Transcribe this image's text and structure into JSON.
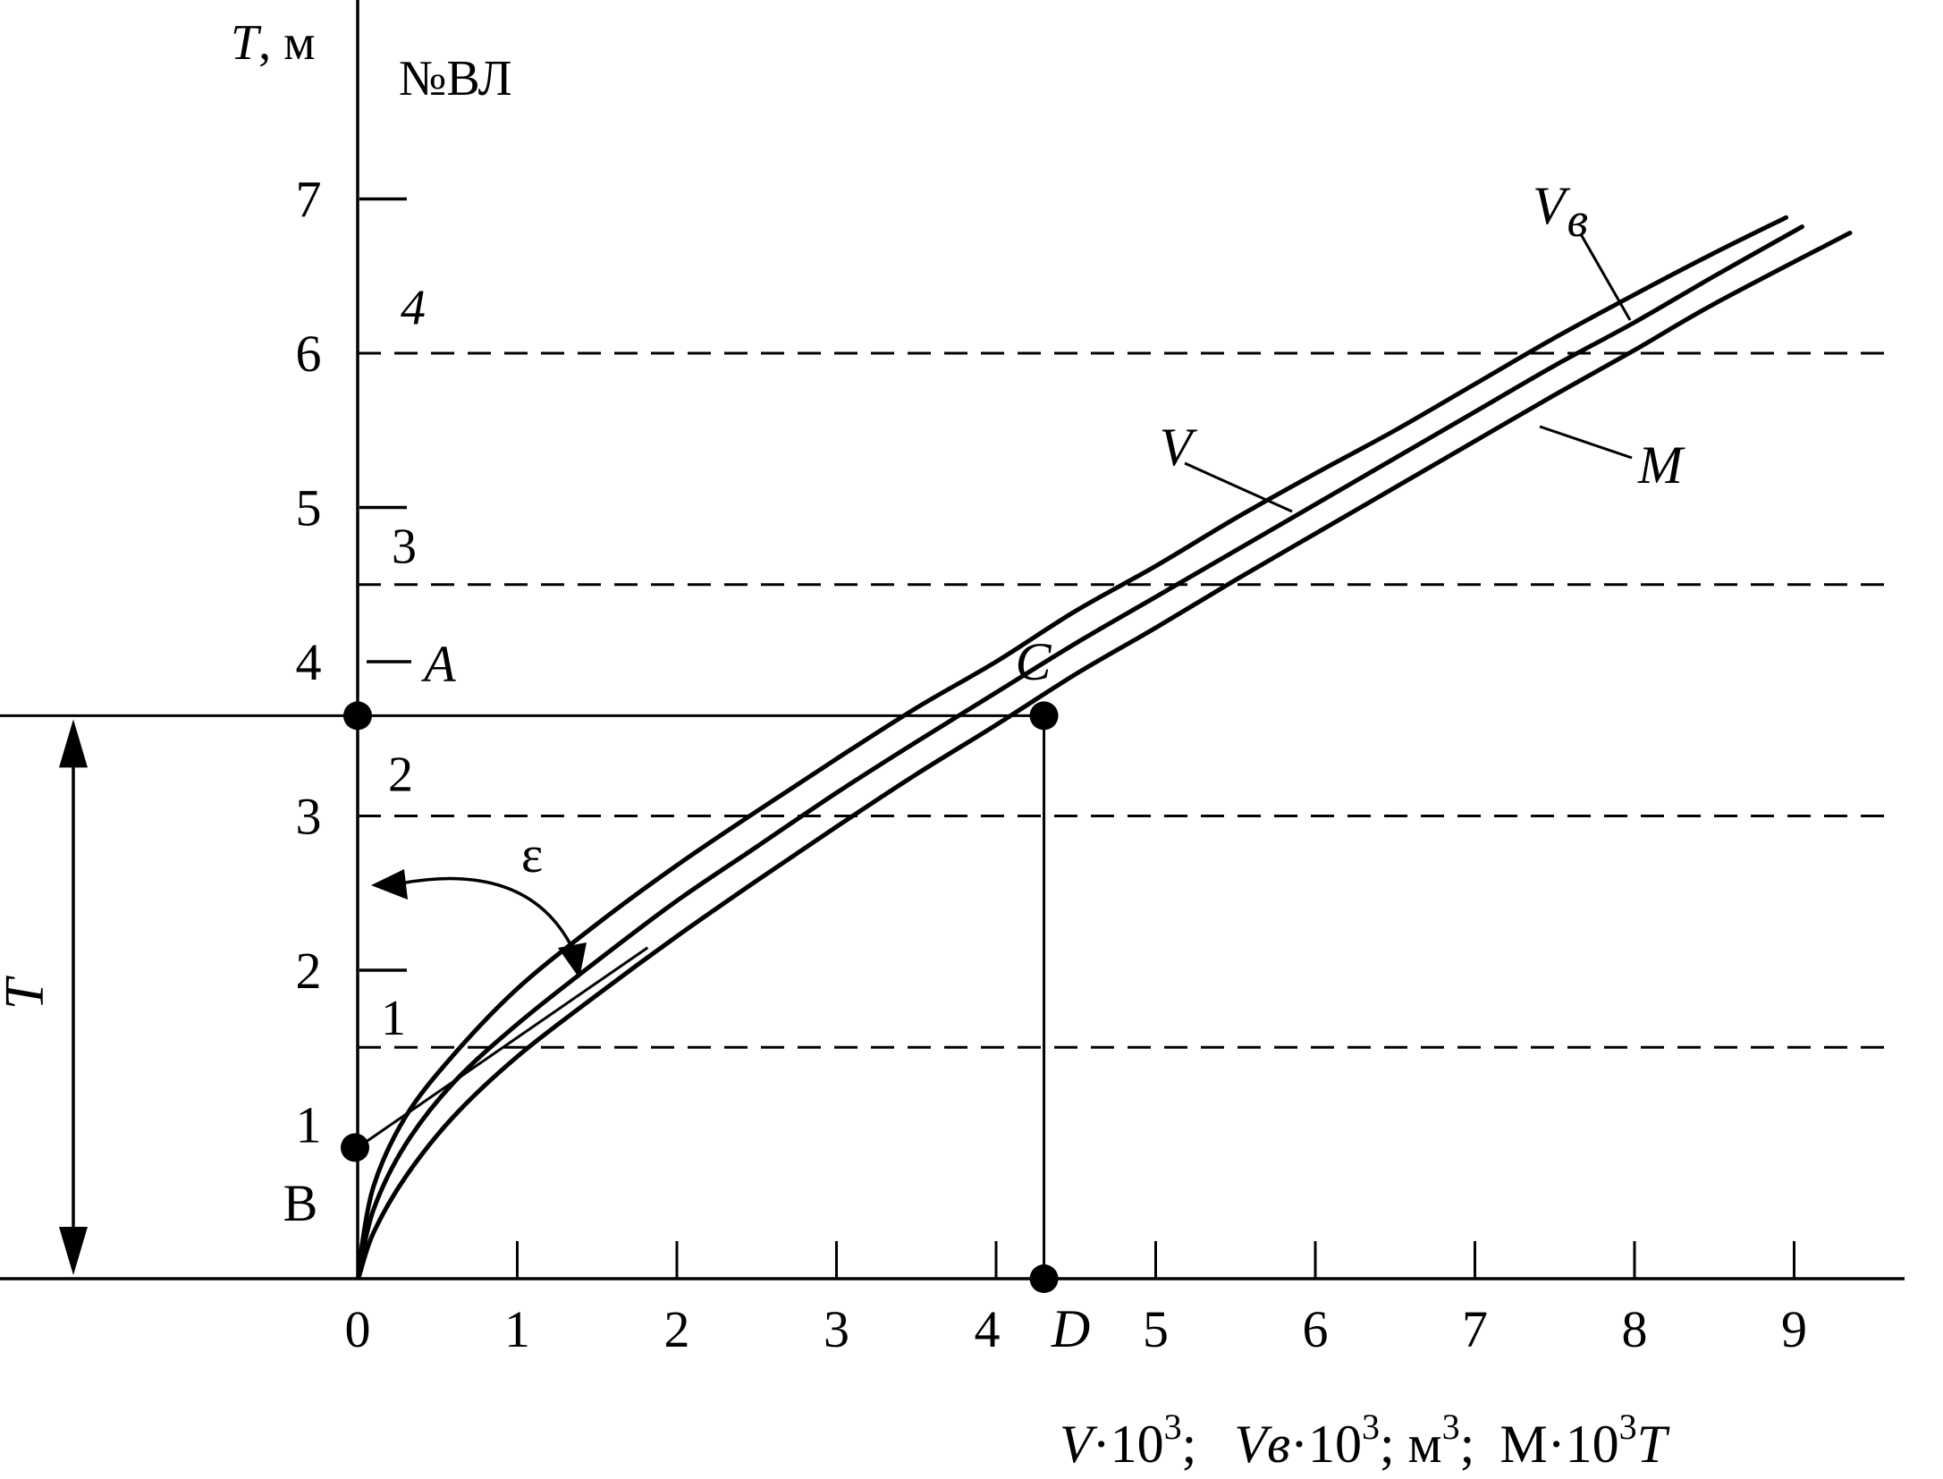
{
  "chart_data": {
    "type": "line",
    "y_axis": {
      "label_var": "T",
      "label_unit": ", м",
      "ticks": [
        "1",
        "2",
        "3",
        "4",
        "5",
        "6",
        "7"
      ],
      "range": [
        0,
        7.8
      ]
    },
    "x_axis": {
      "ticks": [
        "0",
        "1",
        "2",
        "3",
        "4",
        "5",
        "6",
        "7",
        "8",
        "9"
      ],
      "range": [
        -2.1,
        9.5
      ]
    },
    "x_label_parts": [
      "V",
      "·10",
      "3",
      ";",
      "Vв",
      "·10",
      "3",
      "; м",
      "3",
      ";",
      "М·10",
      "3",
      "T"
    ],
    "series": [
      {
        "name": "V",
        "points": [
          [
            0.01,
            0.1
          ],
          [
            0.1,
            0.6
          ],
          [
            0.3,
            1.05
          ],
          [
            0.6,
            1.45
          ],
          [
            1.0,
            1.88
          ],
          [
            1.5,
            2.3
          ],
          [
            2.0,
            2.68
          ],
          [
            2.5,
            3.03
          ],
          [
            3.0,
            3.37
          ],
          [
            3.5,
            3.7
          ],
          [
            4.0,
            4.0
          ],
          [
            4.5,
            4.33
          ],
          [
            5.0,
            4.62
          ],
          [
            5.5,
            4.93
          ],
          [
            6.0,
            5.22
          ],
          [
            6.5,
            5.5
          ],
          [
            7.0,
            5.8
          ],
          [
            7.5,
            6.1
          ],
          [
            8.0,
            6.38
          ],
          [
            8.5,
            6.65
          ],
          [
            8.95,
            6.88
          ]
        ]
      },
      {
        "name": "Vв",
        "points": [
          [
            0.01,
            0.05
          ],
          [
            0.1,
            0.45
          ],
          [
            0.3,
            0.87
          ],
          [
            0.6,
            1.27
          ],
          [
            1.0,
            1.65
          ],
          [
            1.5,
            2.06
          ],
          [
            2.0,
            2.45
          ],
          [
            2.5,
            2.8
          ],
          [
            3.0,
            3.15
          ],
          [
            3.5,
            3.48
          ],
          [
            4.0,
            3.8
          ],
          [
            4.5,
            4.12
          ],
          [
            5.0,
            4.42
          ],
          [
            5.5,
            4.72
          ],
          [
            6.0,
            5.02
          ],
          [
            6.5,
            5.32
          ],
          [
            7.0,
            5.62
          ],
          [
            7.5,
            5.92
          ],
          [
            8.0,
            6.2
          ],
          [
            8.5,
            6.5
          ],
          [
            9.05,
            6.82
          ]
        ]
      },
      {
        "name": "М",
        "points": [
          [
            0.01,
            0.02
          ],
          [
            0.1,
            0.3
          ],
          [
            0.3,
            0.66
          ],
          [
            0.6,
            1.05
          ],
          [
            1.0,
            1.44
          ],
          [
            1.5,
            1.84
          ],
          [
            2.0,
            2.22
          ],
          [
            2.5,
            2.58
          ],
          [
            3.0,
            2.93
          ],
          [
            3.5,
            3.27
          ],
          [
            4.0,
            3.59
          ],
          [
            4.5,
            3.92
          ],
          [
            5.0,
            4.22
          ],
          [
            5.5,
            4.53
          ],
          [
            6.0,
            4.83
          ],
          [
            6.5,
            5.13
          ],
          [
            7.0,
            5.43
          ],
          [
            7.5,
            5.73
          ],
          [
            8.0,
            6.02
          ],
          [
            8.5,
            6.32
          ],
          [
            9.35,
            6.78
          ]
        ]
      }
    ],
    "curve_labels": {
      "V": "V",
      "Vв": "V",
      "Vв_sub": "в",
      "М": "M"
    },
    "dashed_levels": [
      1.5,
      3.0,
      4.5,
      6.0
    ],
    "zone_title": "№ВЛ",
    "zones": [
      {
        "label": "1",
        "level": 2.0
      },
      {
        "label": "2",
        "level": null
      },
      {
        "label": "3",
        "level": 5.0
      },
      {
        "label": "4",
        "level": 7.0
      }
    ],
    "draft_marker": {
      "label": "A",
      "level": 4.0
    },
    "draft_level": 3.65,
    "point_labels": {
      "C": "C",
      "D": "D",
      "B": "В"
    },
    "draft_arrow_label": "T",
    "angle_label": "ε",
    "tangent_intercept": 0.85,
    "tangent_point": [
      1.75,
      2.1
    ]
  }
}
